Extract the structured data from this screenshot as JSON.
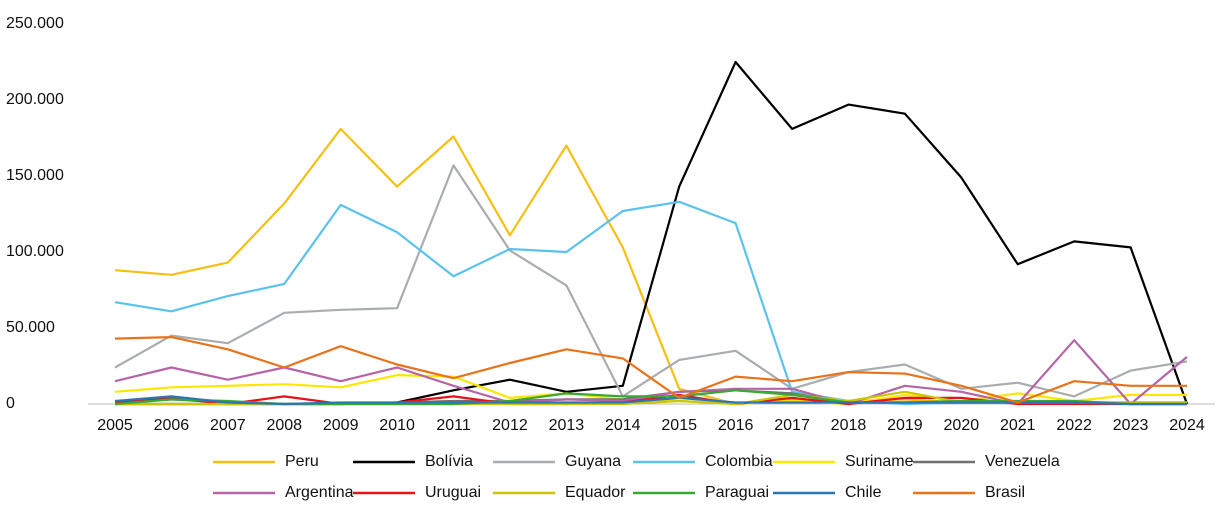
{
  "chart_data": {
    "type": "line",
    "categories": [
      "2005",
      "2006",
      "2007",
      "2008",
      "2009",
      "2010",
      "2011",
      "2012",
      "2013",
      "2014",
      "2015",
      "2016",
      "2017",
      "2018",
      "2019",
      "2020",
      "2021",
      "2022",
      "2023",
      "2024"
    ],
    "ylim": [
      0,
      250000
    ],
    "yticks": [
      0,
      {
        "value": 50000,
        "label": "50.000"
      },
      {
        "value": 100000,
        "label": "100.000"
      },
      {
        "value": 150000,
        "label": "150.000"
      },
      {
        "value": 200000,
        "label": "200.000"
      },
      {
        "value": 250000,
        "label": "250.000"
      }
    ],
    "series": [
      {
        "name": "Peru",
        "color": "#f5c012",
        "values": [
          88000,
          85000,
          93000,
          132000,
          181000,
          143000,
          176000,
          111000,
          170000,
          103000,
          10000,
          0,
          3000,
          2000,
          3000,
          1000,
          1000,
          1000,
          1000,
          1000
        ]
      },
      {
        "name": "Bolívia",
        "color": "#000000",
        "values": [
          0,
          0,
          0,
          0,
          0,
          1000,
          9000,
          16000,
          8000,
          12000,
          143000,
          225000,
          181000,
          197000,
          191000,
          149000,
          92000,
          107000,
          103000,
          0
        ]
      },
      {
        "name": "Guyana",
        "color": "#a9adb0",
        "values": [
          24000,
          45000,
          40000,
          60000,
          62000,
          63000,
          157000,
          101000,
          78000,
          5000,
          29000,
          35000,
          10000,
          21000,
          26000,
          10000,
          14000,
          5000,
          22000,
          28000
        ]
      },
      {
        "name": "Colombia",
        "color": "#5bc2ec",
        "values": [
          67000,
          61000,
          71000,
          79000,
          131000,
          113000,
          84000,
          102000,
          100000,
          127000,
          133000,
          119000,
          8000,
          2000,
          0,
          1000,
          1000,
          1000,
          1000,
          1000
        ]
      },
      {
        "name": "Suriname",
        "color": "#ffe600",
        "values": [
          8000,
          11000,
          12000,
          13000,
          11000,
          19000,
          18000,
          4000,
          7000,
          3000,
          2000,
          0,
          2000,
          0,
          6000,
          2000,
          7000,
          2000,
          6000,
          6000
        ]
      },
      {
        "name": "Venezuela",
        "color": "#707070",
        "values": [
          1000,
          3000,
          1000,
          0,
          0,
          1000,
          2000,
          2000,
          3000,
          3000,
          8000,
          9000,
          7000,
          1000,
          1000,
          1000,
          1000,
          1000,
          0,
          0
        ]
      },
      {
        "name": "Argentina",
        "color": "#b565a7",
        "values": [
          15000,
          24000,
          16000,
          24000,
          15000,
          24000,
          12000,
          1000,
          3000,
          2000,
          8000,
          10000,
          10000,
          0,
          12000,
          8000,
          0,
          42000,
          0,
          31000
        ]
      },
      {
        "name": "Uruguai",
        "color": "#e3121b",
        "values": [
          1000,
          4000,
          0,
          5000,
          0,
          1000,
          5000,
          0,
          0,
          1000,
          6000,
          0,
          4000,
          0,
          4000,
          4000,
          0,
          0,
          0,
          0
        ]
      },
      {
        "name": "Equador",
        "color": "#c9c800",
        "values": [
          0,
          0,
          0,
          0,
          0,
          0,
          0,
          0,
          0,
          0,
          2000,
          0,
          6000,
          2000,
          8000,
          1000,
          1000,
          1000,
          1000,
          1000
        ]
      },
      {
        "name": "Paraguai",
        "color": "#3aa835",
        "values": [
          0,
          3000,
          2000,
          0,
          0,
          0,
          0,
          2000,
          7000,
          5000,
          5000,
          9000,
          6000,
          1000,
          1000,
          2000,
          2000,
          2000,
          0,
          0
        ]
      },
      {
        "name": "Chile",
        "color": "#2e75b6",
        "values": [
          2000,
          5000,
          1000,
          0,
          1000,
          1000,
          1000,
          1000,
          1000,
          1000,
          4000,
          1000,
          1000,
          1000,
          1000,
          1000,
          1000,
          1000,
          0,
          0
        ]
      },
      {
        "name": "Brasil",
        "color": "#e8731a",
        "values": [
          43000,
          44000,
          36000,
          24000,
          38000,
          26000,
          17000,
          27000,
          36000,
          30000,
          4000,
          18000,
          15000,
          21000,
          20000,
          12000,
          1000,
          15000,
          12000,
          12000
        ]
      }
    ]
  }
}
